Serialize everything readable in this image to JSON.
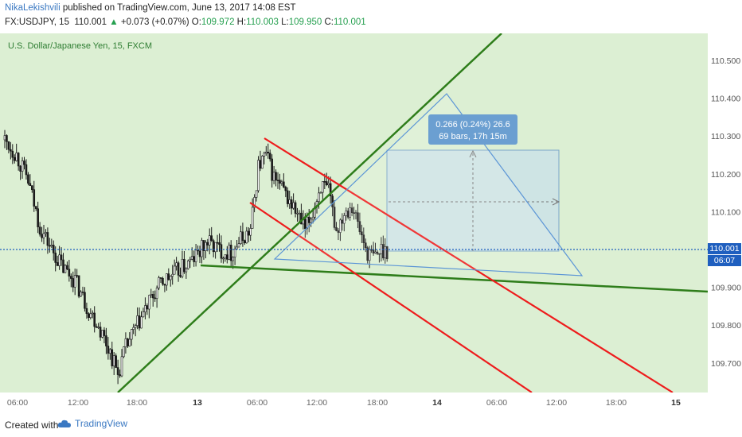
{
  "header": {
    "author": "NikaLekishvili",
    "published_text": "published on TradingView.com, June 13, 2017 14:08 EST",
    "symbol": "FX:USDJPY, 15",
    "last": "110.001",
    "change": "+0.073 (+0.07%)",
    "o_label": "O:",
    "o_value": "109.972",
    "h_label": "H:",
    "h_value": "110.003",
    "l_label": "L:",
    "l_value": "109.950",
    "c_label": "C:",
    "c_value": "110.001"
  },
  "chart_data": {
    "type": "candlestick",
    "title": "U.S. Dollar/Japanese Yen, 15, FXCM",
    "y_ticks": [
      "110.500",
      "110.400",
      "110.300",
      "110.200",
      "110.100",
      "109.900",
      "109.800",
      "109.700"
    ],
    "ylim": [
      109.62,
      110.58
    ],
    "x_ticks": [
      "06:00",
      "12:00",
      "18:00",
      "13",
      "06:00",
      "12:00",
      "18:00",
      "14",
      "06:00",
      "12:00",
      "18:00",
      "15"
    ],
    "current_price": "110.001",
    "countdown": "06:07",
    "measure_label_line1": "0.266 (0.24%) 26.6",
    "measure_label_line2": "69 bars, 17h 15m",
    "colors": {
      "plot_bg": "#dcefd3",
      "trend_green": "#2e7d1a",
      "trend_red": "#ee1c1c",
      "triangle_blue": "#5b95d6",
      "measure_fill": "#c9e0ea",
      "price_line": "#1f5fbf",
      "candle_up": "#ffffff",
      "candle_down": "#1a1a1a"
    }
  },
  "footer": {
    "created_with": "Created with",
    "brand": "TradingView"
  }
}
